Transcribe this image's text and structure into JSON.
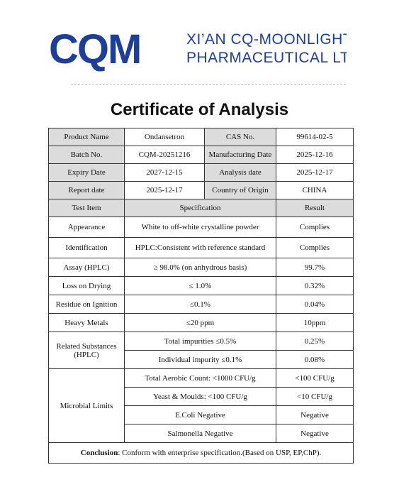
{
  "header": {
    "logo_text": "CQM",
    "company_line1": "XI’AN CQ-MOONLIGHT",
    "company_line2": "PHARMACEUTICAL LTD",
    "brand_color": "#1d3f9a"
  },
  "title": "Certificate of Analysis",
  "info": {
    "product_name_label": "Product Name",
    "product_name": "Ondansetron",
    "cas_label": "CAS No.",
    "cas": "99614-02-5",
    "batch_label": "Batch No.",
    "batch": "CQM-20251216",
    "mfg_label": "Manufacturing Date",
    "mfg": "2025-12-16",
    "expiry_label": "Expiry Date",
    "expiry": "2027-12-15",
    "analysis_label": "Analysis date",
    "analysis": "2025-12-17",
    "report_label": "Report date",
    "report": "2025-12-17",
    "origin_label": "Country of Origin",
    "origin": "CHINA"
  },
  "columns": {
    "test_item": "Test Item",
    "specification": "Specification",
    "result": "Result"
  },
  "tests": {
    "appearance": {
      "item": "Appearance",
      "spec": "White to off-white crystalline powder",
      "result": "Complies"
    },
    "identification": {
      "item": "Identification",
      "spec": "HPLC:Consistent with reference standard",
      "result": "Complies"
    },
    "assay": {
      "item": "Assay (HPLC)",
      "spec": "≥ 98.0% (on anhydrous basis)",
      "result": "99.7%"
    },
    "loss_on_drying": {
      "item": "Loss on Drying",
      "spec": "≤ 1.0%",
      "result": "0.32%"
    },
    "residue": {
      "item": "Residue on Ignition",
      "spec": "≤0.1%",
      "result": "0.04%"
    },
    "heavy_metals": {
      "item": "Heavy Metals",
      "spec": "≤20 ppm",
      "result": "10ppm"
    }
  },
  "related": {
    "item_line1": "Related Substances",
    "item_line2": "(HPLC)",
    "total_spec": "Total impurities ≤0.5%",
    "total_result": "0.25%",
    "individual_spec": "Individual impurity ≤0.1%",
    "individual_result": "0.08%"
  },
  "microbial": {
    "item": "Microbial Limits",
    "rows": [
      {
        "spec": "Total Aerobic Count: <1000 CFU/g",
        "result": "<100 CFU/g"
      },
      {
        "spec": "Yeast & Moulds: <100 CFU/g",
        "result": "<10 CFU/g"
      },
      {
        "spec": "E.Coli Negative",
        "result": "Negative"
      },
      {
        "spec": "Salmonella Negative",
        "result": "Negative"
      }
    ]
  },
  "conclusion": {
    "label": "Conclusion",
    "text": ": Conform with enterprise specification.(Based on USP, EP,ChP)."
  }
}
